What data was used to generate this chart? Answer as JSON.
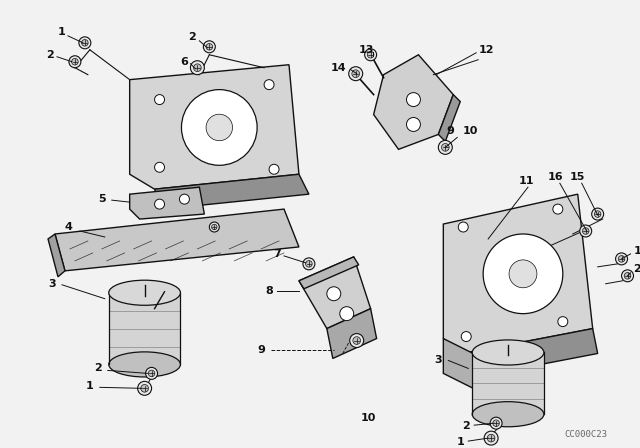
{
  "bg_color": "#f2f2f2",
  "line_color": "#111111",
  "watermark": "CC000C23",
  "figsize": [
    6.4,
    4.48
  ],
  "dpi": 100
}
